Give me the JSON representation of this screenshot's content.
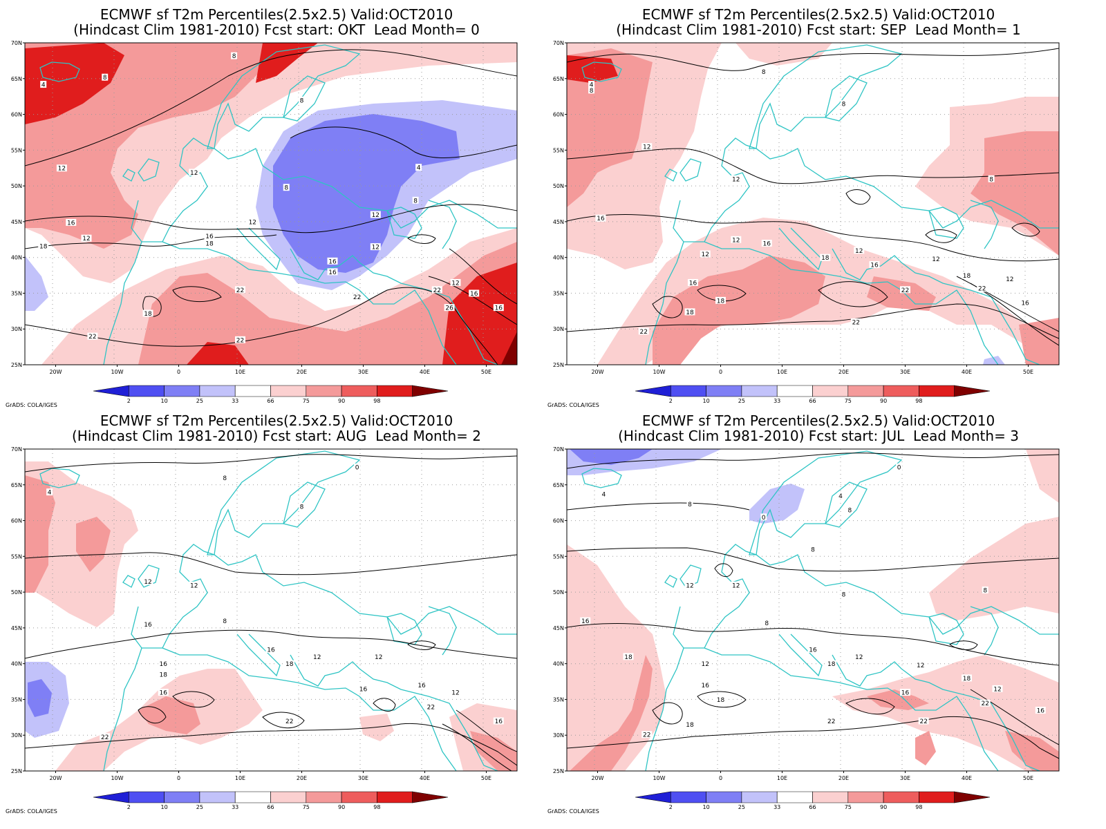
{
  "colors": {
    "coastline": "#2ec4c4",
    "contour": "#000000",
    "grid": "#999999",
    "shades": [
      "#1f1fd6",
      "#4f4ff2",
      "#7f7ff5",
      "#c2c2fa",
      "#ffffff",
      "#fbd0d0",
      "#f49a9a",
      "#ee5d5d",
      "#e01d1d",
      "#7f0000"
    ]
  },
  "lat_labels": [
    "70N",
    "65N",
    "60N",
    "55N",
    "50N",
    "45N",
    "40N",
    "35N",
    "30N",
    "25N"
  ],
  "lon_labels": [
    "20W",
    "10W",
    "0",
    "10E",
    "20E",
    "30E",
    "40E",
    "50E"
  ],
  "colorbar_labels": [
    "2",
    "10",
    "25",
    "33",
    "66",
    "75",
    "90",
    "98"
  ],
  "credit": "GrADS: COLA/IGES",
  "panels": [
    {
      "title1": "ECMWF sf T2m Percentiles(2.5x2.5) Valid:OCT2010",
      "title2": "(Hindcast Clim 1981-2010) Fcst start: OKT  Lead Month= 0",
      "contour_labels": [
        {
          "text": "8",
          "lat": 65.2,
          "lon": -12
        },
        {
          "text": "4",
          "lat": 64.2,
          "lon": -22
        },
        {
          "text": "8",
          "lat": 68.2,
          "lon": 9
        },
        {
          "text": "8",
          "lat": 62,
          "lon": 20
        },
        {
          "text": "4",
          "lat": 52.6,
          "lon": 39
        },
        {
          "text": "8",
          "lat": 49.8,
          "lon": 17.5
        },
        {
          "text": "8",
          "lat": 48,
          "lon": 38.5
        },
        {
          "text": "12",
          "lat": 52.5,
          "lon": -19
        },
        {
          "text": "12",
          "lat": 51.9,
          "lon": 2.5
        },
        {
          "text": "16",
          "lat": 44.9,
          "lon": -17.5
        },
        {
          "text": "12",
          "lat": 42.7,
          "lon": -15
        },
        {
          "text": "18",
          "lat": 41.6,
          "lon": -22
        },
        {
          "text": "12",
          "lat": 45,
          "lon": 12
        },
        {
          "text": "16",
          "lat": 43,
          "lon": 5
        },
        {
          "text": "18",
          "lat": 42,
          "lon": 5
        },
        {
          "text": "12",
          "lat": 46,
          "lon": 32
        },
        {
          "text": "12",
          "lat": 41.5,
          "lon": 32
        },
        {
          "text": "16",
          "lat": 39.5,
          "lon": 25
        },
        {
          "text": "16",
          "lat": 38,
          "lon": 25
        },
        {
          "text": "22",
          "lat": 35.5,
          "lon": 10
        },
        {
          "text": "22",
          "lat": 34.5,
          "lon": 29
        },
        {
          "text": "22",
          "lat": 35.5,
          "lon": 42
        },
        {
          "text": "12",
          "lat": 36.5,
          "lon": 45
        },
        {
          "text": "16",
          "lat": 35,
          "lon": 48
        },
        {
          "text": "26",
          "lat": 33,
          "lon": 44
        },
        {
          "text": "16",
          "lat": 33,
          "lon": 52
        },
        {
          "text": "18",
          "lat": 32.2,
          "lon": -5
        },
        {
          "text": "22",
          "lat": 29,
          "lon": -14
        },
        {
          "text": "22",
          "lat": 28.5,
          "lon": 10
        }
      ]
    },
    {
      "title1": "ECMWF sf T2m Percentiles(2.5x2.5) Valid:OCT2010",
      "title2": "(Hindcast Clim 1981-2010) Fcst start: SEP  Lead Month= 1",
      "contour_labels": [
        {
          "text": "4",
          "lat": 64.2,
          "lon": -21
        },
        {
          "text": "8",
          "lat": 63.4,
          "lon": -21
        },
        {
          "text": "8",
          "lat": 66,
          "lon": 7
        },
        {
          "text": "8",
          "lat": 61.5,
          "lon": 20
        },
        {
          "text": "8",
          "lat": 51,
          "lon": 44
        },
        {
          "text": "12",
          "lat": 55.5,
          "lon": -12
        },
        {
          "text": "12",
          "lat": 51,
          "lon": 2.5
        },
        {
          "text": "16",
          "lat": 45.5,
          "lon": -19.5
        },
        {
          "text": "12",
          "lat": 42.5,
          "lon": 2.5
        },
        {
          "text": "12",
          "lat": 40.5,
          "lon": -2.5
        },
        {
          "text": "16",
          "lat": 42,
          "lon": 7.5
        },
        {
          "text": "18",
          "lat": 40,
          "lon": 17
        },
        {
          "text": "12",
          "lat": 41,
          "lon": 22.5
        },
        {
          "text": "16",
          "lat": 39,
          "lon": 25
        },
        {
          "text": "12",
          "lat": 39.8,
          "lon": 35
        },
        {
          "text": "18",
          "lat": 37.5,
          "lon": 40
        },
        {
          "text": "22",
          "lat": 35.7,
          "lon": 42.5
        },
        {
          "text": "12",
          "lat": 37,
          "lon": 47
        },
        {
          "text": "16",
          "lat": 33.7,
          "lon": 49.5
        },
        {
          "text": "22",
          "lat": 35.5,
          "lon": 30
        },
        {
          "text": "22",
          "lat": 31,
          "lon": 22
        },
        {
          "text": "18",
          "lat": 34,
          "lon": 0
        },
        {
          "text": "18",
          "lat": 32.4,
          "lon": -5
        },
        {
          "text": "16",
          "lat": 36.5,
          "lon": -4.5
        },
        {
          "text": "22",
          "lat": 29.7,
          "lon": -12.5
        }
      ]
    },
    {
      "title1": "ECMWF sf T2m Percentiles(2.5x2.5) Valid:OCT2010",
      "title2": "(Hindcast Clim 1981-2010) Fcst start: AUG  Lead Month= 2",
      "contour_labels": [
        {
          "text": "0",
          "lat": 67.5,
          "lon": 29
        },
        {
          "text": "8",
          "lat": 66,
          "lon": 7.5
        },
        {
          "text": "4",
          "lat": 64,
          "lon": -21
        },
        {
          "text": "8",
          "lat": 62,
          "lon": 20
        },
        {
          "text": "12",
          "lat": 51.5,
          "lon": -5
        },
        {
          "text": "12",
          "lat": 51,
          "lon": 2.5
        },
        {
          "text": "16",
          "lat": 45.5,
          "lon": -5
        },
        {
          "text": "8",
          "lat": 46,
          "lon": 7.5
        },
        {
          "text": "16",
          "lat": 42,
          "lon": 15
        },
        {
          "text": "12",
          "lat": 41,
          "lon": 22.5
        },
        {
          "text": "18",
          "lat": 40,
          "lon": 18
        },
        {
          "text": "12",
          "lat": 41,
          "lon": 32.5
        },
        {
          "text": "16",
          "lat": 40,
          "lon": -2.5
        },
        {
          "text": "18",
          "lat": 38.5,
          "lon": -2.5
        },
        {
          "text": "16",
          "lat": 36,
          "lon": -2.5
        },
        {
          "text": "16",
          "lat": 36.5,
          "lon": 30
        },
        {
          "text": "16",
          "lat": 37,
          "lon": 39.5
        },
        {
          "text": "12",
          "lat": 36,
          "lon": 45
        },
        {
          "text": "22",
          "lat": 34,
          "lon": 41
        },
        {
          "text": "22",
          "lat": 32,
          "lon": 18
        },
        {
          "text": "16",
          "lat": 32,
          "lon": 52
        },
        {
          "text": "22",
          "lat": 29.8,
          "lon": -12
        }
      ]
    },
    {
      "title1": "ECMWF sf T2m Percentiles(2.5x2.5) Valid:OCT2010",
      "title2": "(Hindcast Clim 1981-2010) Fcst start: JUL  Lead Month= 3",
      "contour_labels": [
        {
          "text": "0",
          "lat": 67.5,
          "lon": 29
        },
        {
          "text": "4",
          "lat": 63.7,
          "lon": -19
        },
        {
          "text": "8",
          "lat": 62.3,
          "lon": -5
        },
        {
          "text": "0",
          "lat": 60.5,
          "lon": 7
        },
        {
          "text": "4",
          "lat": 63.5,
          "lon": 19.5
        },
        {
          "text": "8",
          "lat": 61.5,
          "lon": 21
        },
        {
          "text": "8",
          "lat": 56,
          "lon": 15
        },
        {
          "text": "12",
          "lat": 51,
          "lon": -5
        },
        {
          "text": "12",
          "lat": 51,
          "lon": 2.5
        },
        {
          "text": "16",
          "lat": 46,
          "lon": -22
        },
        {
          "text": "8",
          "lat": 49.7,
          "lon": 20
        },
        {
          "text": "8",
          "lat": 50.3,
          "lon": 43
        },
        {
          "text": "18",
          "lat": 41,
          "lon": -15
        },
        {
          "text": "8",
          "lat": 45.7,
          "lon": 7.5
        },
        {
          "text": "16",
          "lat": 42,
          "lon": 15
        },
        {
          "text": "12",
          "lat": 41,
          "lon": 22.5
        },
        {
          "text": "18",
          "lat": 40,
          "lon": 18
        },
        {
          "text": "12",
          "lat": 39.8,
          "lon": 32.5
        },
        {
          "text": "12",
          "lat": 40,
          "lon": -2.5
        },
        {
          "text": "16",
          "lat": 37,
          "lon": -2.5
        },
        {
          "text": "18",
          "lat": 35,
          "lon": 0
        },
        {
          "text": "16",
          "lat": 36,
          "lon": 30
        },
        {
          "text": "18",
          "lat": 38,
          "lon": 40
        },
        {
          "text": "12",
          "lat": 36.5,
          "lon": 45
        },
        {
          "text": "22",
          "lat": 34.5,
          "lon": 43
        },
        {
          "text": "22",
          "lat": 32,
          "lon": 33
        },
        {
          "text": "22",
          "lat": 32,
          "lon": 18
        },
        {
          "text": "16",
          "lat": 33.5,
          "lon": 52
        },
        {
          "text": "18",
          "lat": 31.5,
          "lon": -5
        },
        {
          "text": "22",
          "lat": 30.1,
          "lon": -12
        }
      ]
    }
  ]
}
